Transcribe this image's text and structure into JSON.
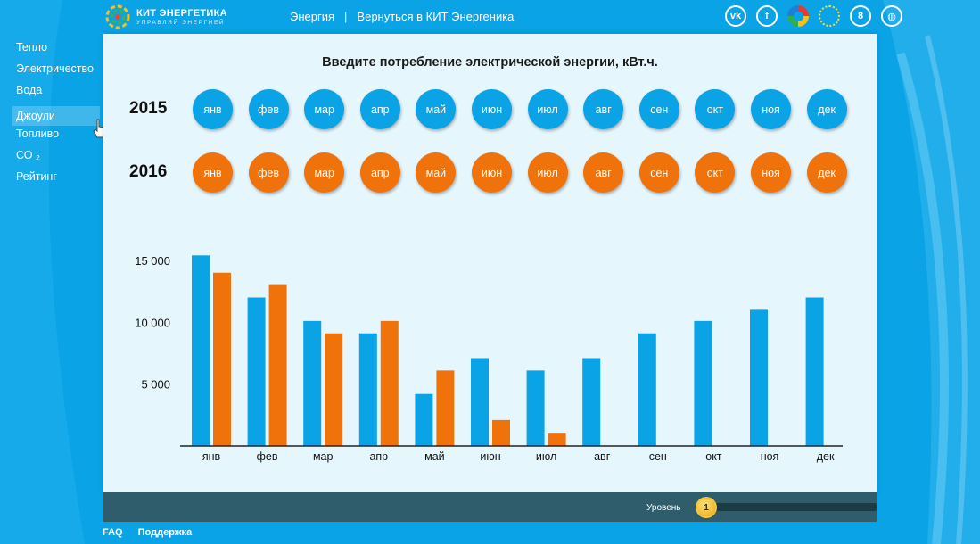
{
  "brand": {
    "name": "КИТ ЭНЕРГЕТИКА",
    "tagline": "УПРАВЛЯЙ ЭНЕРГИЕЙ"
  },
  "topnav": {
    "section": "Энергия",
    "separator": "|",
    "back_link": "Вернуться в КИТ Энергеника"
  },
  "socials": [
    {
      "icon": "vk-icon",
      "glyph": "vk"
    },
    {
      "icon": "facebook-icon",
      "glyph": "f"
    },
    {
      "icon": "color-ring-icon",
      "glyph": ""
    },
    {
      "icon": "sun-icon",
      "glyph": ""
    },
    {
      "icon": "odnoklassniki-icon",
      "glyph": "8"
    },
    {
      "icon": "globe-icon",
      "glyph": "◍"
    }
  ],
  "sidebar": {
    "items": [
      {
        "label": "Тепло"
      },
      {
        "label": "Электричество"
      },
      {
        "label": "Вода"
      },
      {
        "label": "Джоули"
      },
      {
        "label": "Топливо"
      },
      {
        "label": "СО ₂"
      },
      {
        "label": "Рейтинг"
      }
    ],
    "active_index": 3
  },
  "panel": {
    "title": "Введите потребление электрической энергии, кВт.ч."
  },
  "years": [
    {
      "label": "2015",
      "color": "#0aa3e6"
    },
    {
      "label": "2016",
      "color": "#f0720a"
    }
  ],
  "months": [
    "янв",
    "фев",
    "мар",
    "апр",
    "май",
    "июн",
    "июл",
    "авг",
    "сен",
    "окт",
    "ноя",
    "дек"
  ],
  "chart_data": {
    "type": "bar",
    "categories": [
      "янв",
      "фев",
      "мар",
      "апр",
      "май",
      "июн",
      "июл",
      "авг",
      "сен",
      "окт",
      "ноя",
      "дек"
    ],
    "series": [
      {
        "name": "2015",
        "color": "#0aa3e6",
        "values": [
          15400,
          12000,
          10100,
          9100,
          4200,
          7100,
          6100,
          7100,
          9100,
          10100,
          11000,
          12000
        ]
      },
      {
        "name": "2016",
        "color": "#f0720a",
        "values": [
          14000,
          13000,
          9100,
          10100,
          6100,
          2100,
          1000,
          null,
          null,
          null,
          null,
          null
        ]
      }
    ],
    "yticks": [
      5000,
      10000,
      15000
    ],
    "ytick_labels": [
      "5 000",
      "10 000",
      "15 000"
    ],
    "ylim": [
      0,
      16000
    ],
    "title": "",
    "xlabel": "",
    "ylabel": "",
    "grid": false
  },
  "footer": {
    "level_label": "Уровень",
    "level_value": "1",
    "links": [
      {
        "label": "FAQ"
      },
      {
        "label": "Поддержка"
      }
    ]
  }
}
